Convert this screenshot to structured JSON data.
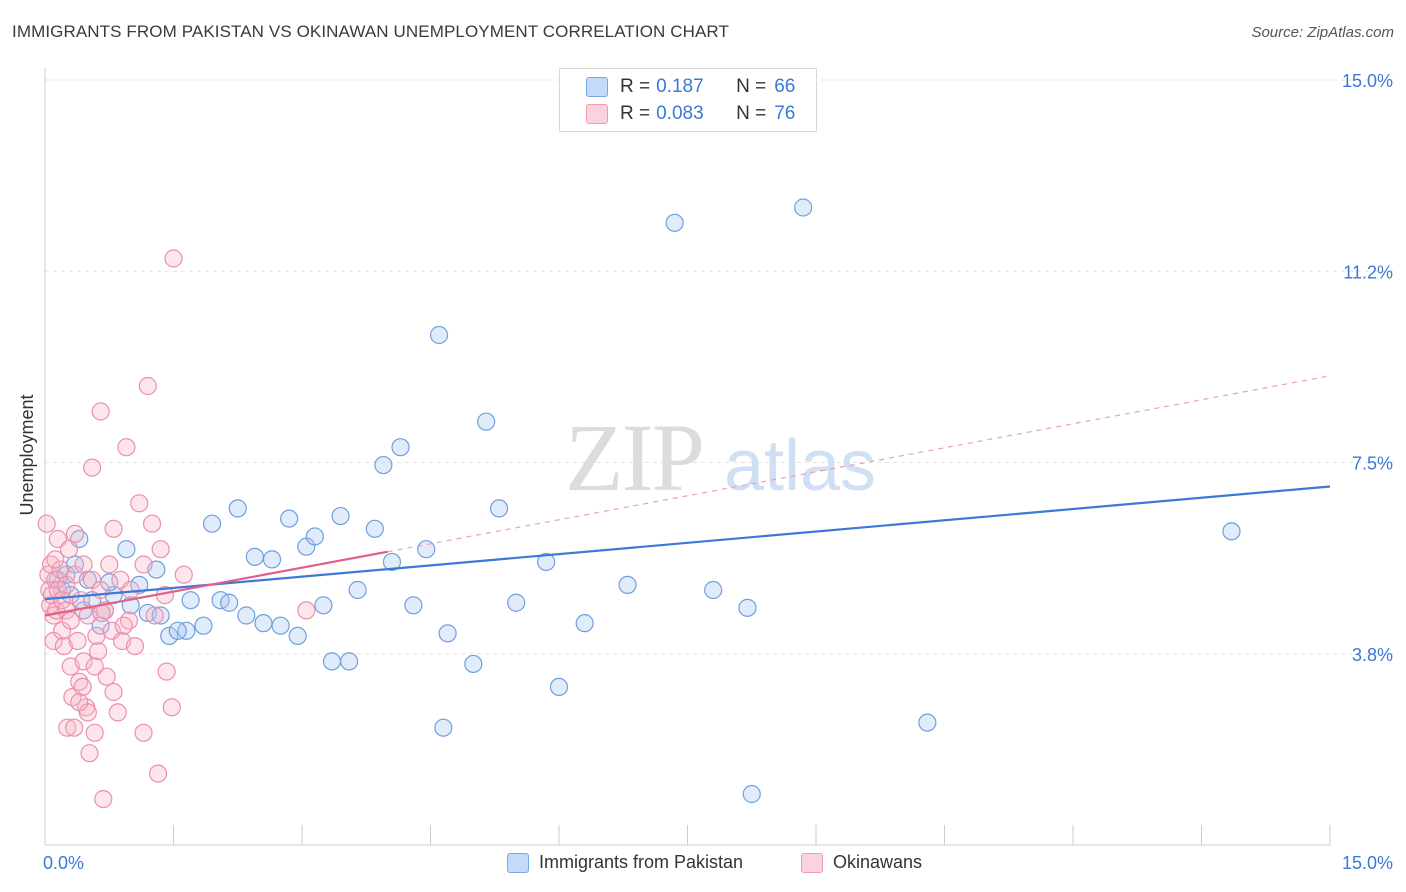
{
  "title": "IMMIGRANTS FROM PAKISTAN VS OKINAWAN UNEMPLOYMENT CORRELATION CHART",
  "source": "Source: ZipAtlas.com",
  "watermark": {
    "zip": "ZIP",
    "atlas": "atlas"
  },
  "legend": {
    "rows": [
      {
        "r_label": "R =",
        "r_value": "0.187",
        "n_label": "N =",
        "n_value": "66",
        "color": "#a8c8f0"
      },
      {
        "r_label": "R =",
        "r_value": "0.083",
        "n_label": "N =",
        "n_value": "76",
        "color": "#f6b6c8"
      }
    ]
  },
  "bottom_legend": {
    "items": [
      {
        "label": "Immigrants from Pakistan",
        "color": "#a8c8f0"
      },
      {
        "label": "Okinawans",
        "color": "#f6b6c8"
      }
    ]
  },
  "chart_data": {
    "type": "scatter",
    "title": "IMMIGRANTS FROM PAKISTAN VS OKINAWAN UNEMPLOYMENT CORRELATION CHART",
    "xlabel": "",
    "ylabel": "Unemployment",
    "xlim": [
      0,
      15
    ],
    "ylim": [
      0,
      15
    ],
    "x_tick_labels": [
      "0.0%",
      "15.0%"
    ],
    "y_tick_labels": [
      "3.8%",
      "7.5%",
      "11.2%",
      "15.0%"
    ],
    "y_ticks": [
      3.75,
      7.5,
      11.25,
      15.0
    ],
    "grid": true,
    "legend_position": "top-center",
    "series": [
      {
        "name": "Immigrants from Pakistan",
        "color": "#7aa8e6",
        "trend": {
          "x": [
            0,
            15
          ],
          "y": [
            4.82,
            7.03
          ],
          "style": "solid",
          "color": "#3c78d8"
        },
        "points": [
          [
            0.15,
            5.2
          ],
          [
            0.2,
            5.0
          ],
          [
            0.25,
            5.3
          ],
          [
            0.3,
            4.9
          ],
          [
            0.35,
            5.5
          ],
          [
            0.4,
            6.0
          ],
          [
            0.45,
            4.6
          ],
          [
            0.5,
            5.2
          ],
          [
            0.55,
            4.8
          ],
          [
            0.65,
            4.3
          ],
          [
            0.7,
            4.6
          ],
          [
            0.8,
            4.9
          ],
          [
            0.95,
            5.8
          ],
          [
            1.0,
            4.7
          ],
          [
            1.1,
            5.1
          ],
          [
            1.2,
            4.55
          ],
          [
            1.3,
            5.4
          ],
          [
            1.35,
            4.5
          ],
          [
            1.45,
            4.1
          ],
          [
            1.65,
            4.2
          ],
          [
            1.7,
            4.8
          ],
          [
            1.85,
            4.3
          ],
          [
            1.95,
            6.3
          ],
          [
            2.05,
            4.8
          ],
          [
            2.15,
            4.75
          ],
          [
            2.25,
            6.6
          ],
          [
            2.35,
            4.5
          ],
          [
            2.45,
            5.65
          ],
          [
            2.55,
            4.35
          ],
          [
            2.65,
            5.6
          ],
          [
            2.85,
            6.4
          ],
          [
            2.75,
            4.3
          ],
          [
            2.95,
            4.1
          ],
          [
            3.05,
            5.85
          ],
          [
            3.15,
            6.05
          ],
          [
            3.25,
            4.7
          ],
          [
            3.35,
            3.6
          ],
          [
            3.45,
            6.45
          ],
          [
            3.55,
            3.6
          ],
          [
            3.65,
            5.0
          ],
          [
            3.85,
            6.2
          ],
          [
            3.95,
            7.45
          ],
          [
            4.05,
            5.55
          ],
          [
            4.15,
            7.8
          ],
          [
            4.3,
            4.7
          ],
          [
            4.45,
            5.8
          ],
          [
            4.6,
            10.0
          ],
          [
            4.65,
            2.3
          ],
          [
            4.7,
            4.15
          ],
          [
            5.0,
            3.55
          ],
          [
            5.15,
            8.3
          ],
          [
            5.3,
            6.6
          ],
          [
            5.5,
            4.75
          ],
          [
            5.85,
            5.55
          ],
          [
            6.0,
            3.1
          ],
          [
            6.3,
            4.35
          ],
          [
            6.8,
            5.1
          ],
          [
            7.35,
            12.2
          ],
          [
            7.8,
            5.0
          ],
          [
            8.2,
            4.65
          ],
          [
            8.25,
            1.0
          ],
          [
            8.85,
            12.5
          ],
          [
            10.3,
            2.4
          ],
          [
            13.85,
            6.15
          ],
          [
            0.75,
            5.15
          ],
          [
            1.55,
            4.2
          ]
        ]
      },
      {
        "name": "Okinawans",
        "color": "#f19ab4",
        "trend": {
          "x": [
            0,
            4.0
          ],
          "y": [
            4.5,
            5.75
          ],
          "style": "solid",
          "color": "#e0608a"
        },
        "trend_ext": {
          "x": [
            4.0,
            15
          ],
          "y": [
            5.75,
            9.2
          ],
          "style": "dashed",
          "color": "#e8a0b8"
        },
        "points": [
          [
            0.02,
            6.3
          ],
          [
            0.04,
            5.3
          ],
          [
            0.05,
            5.0
          ],
          [
            0.06,
            4.7
          ],
          [
            0.07,
            5.5
          ],
          [
            0.08,
            4.9
          ],
          [
            0.1,
            4.5
          ],
          [
            0.1,
            4.0
          ],
          [
            0.12,
            5.2
          ],
          [
            0.13,
            4.6
          ],
          [
            0.15,
            5.0
          ],
          [
            0.15,
            6.0
          ],
          [
            0.18,
            5.4
          ],
          [
            0.2,
            4.8
          ],
          [
            0.2,
            4.2
          ],
          [
            0.22,
            3.9
          ],
          [
            0.25,
            5.1
          ],
          [
            0.25,
            4.6
          ],
          [
            0.28,
            5.8
          ],
          [
            0.3,
            3.5
          ],
          [
            0.3,
            4.4
          ],
          [
            0.32,
            2.9
          ],
          [
            0.35,
            6.1
          ],
          [
            0.35,
            5.3
          ],
          [
            0.38,
            4.0
          ],
          [
            0.4,
            3.2
          ],
          [
            0.42,
            4.8
          ],
          [
            0.45,
            5.5
          ],
          [
            0.45,
            3.6
          ],
          [
            0.48,
            2.7
          ],
          [
            0.5,
            2.6
          ],
          [
            0.5,
            4.5
          ],
          [
            0.52,
            1.8
          ],
          [
            0.55,
            7.4
          ],
          [
            0.55,
            5.2
          ],
          [
            0.58,
            2.2
          ],
          [
            0.6,
            4.1
          ],
          [
            0.62,
            3.8
          ],
          [
            0.65,
            8.5
          ],
          [
            0.65,
            5.0
          ],
          [
            0.68,
            0.9
          ],
          [
            0.7,
            4.6
          ],
          [
            0.72,
            3.3
          ],
          [
            0.75,
            5.5
          ],
          [
            0.78,
            4.2
          ],
          [
            0.8,
            6.2
          ],
          [
            0.8,
            3.0
          ],
          [
            0.85,
            2.6
          ],
          [
            0.88,
            5.2
          ],
          [
            0.9,
            4.0
          ],
          [
            0.95,
            7.8
          ],
          [
            0.98,
            4.4
          ],
          [
            1.0,
            5.0
          ],
          [
            1.05,
            3.9
          ],
          [
            1.1,
            6.7
          ],
          [
            1.15,
            5.5
          ],
          [
            1.15,
            2.2
          ],
          [
            1.2,
            9.0
          ],
          [
            1.25,
            6.3
          ],
          [
            1.28,
            4.5
          ],
          [
            1.32,
            1.4
          ],
          [
            1.35,
            5.8
          ],
          [
            1.4,
            4.9
          ],
          [
            1.42,
            3.4
          ],
          [
            1.48,
            2.7
          ],
          [
            1.5,
            11.5
          ],
          [
            0.26,
            2.3
          ],
          [
            0.34,
            2.3
          ],
          [
            0.44,
            3.1
          ],
          [
            0.58,
            3.5
          ],
          [
            0.66,
            4.55
          ],
          [
            0.92,
            4.3
          ],
          [
            1.62,
            5.3
          ],
          [
            3.05,
            4.6
          ],
          [
            0.12,
            5.6
          ],
          [
            0.4,
            2.8
          ]
        ]
      }
    ]
  }
}
